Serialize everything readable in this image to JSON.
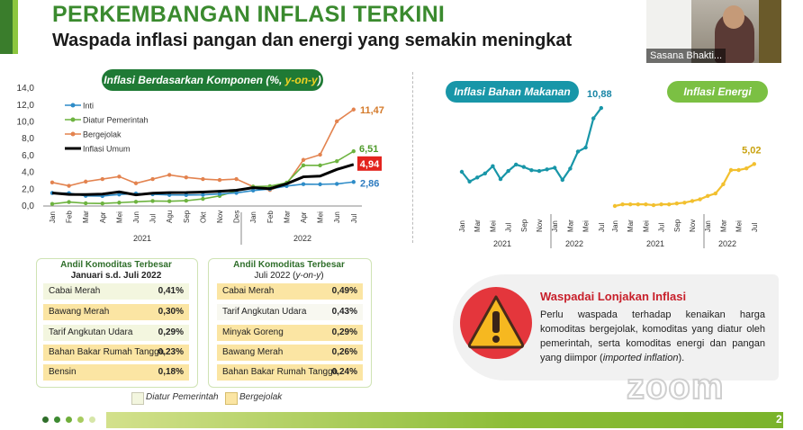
{
  "header": {
    "title": "PERKEMBANGAN INFLASI TERKINI",
    "subtitle": "Waspada inflasi pangan dan energi yang semakin meningkat"
  },
  "video": {
    "participant_name": "Sasana Bhakti..."
  },
  "main_chart": {
    "pill_main": "Inflasi Berdasarkan Komponen (%, ",
    "pill_highlight": "y-on-y",
    "pill_end": ")",
    "end_labels": [
      "11,47",
      "6,51",
      "4,94",
      "2,86"
    ]
  },
  "food_chart": {
    "pill": "Inflasi Bahan Makanan",
    "end_label": "10,88"
  },
  "energy_chart": {
    "pill": "Inflasi Energi",
    "end_label": "5,02"
  },
  "chart_data": [
    {
      "type": "line",
      "title": "Inflasi Berdasarkan Komponen (%, y-on-y)",
      "ylim": [
        0,
        14
      ],
      "y_ticks": [
        "0,0",
        "2,0",
        "4,0",
        "6,0",
        "8,0",
        "10,0",
        "12,0",
        "14,0"
      ],
      "x": [
        "Jan",
        "Feb",
        "Mar",
        "Apr",
        "Mei",
        "Jun",
        "Jul",
        "Agu",
        "Sep",
        "Okt",
        "Nov",
        "Des",
        "Jan",
        "Feb",
        "Mar",
        "Apr",
        "Mei",
        "Jun",
        "Jul"
      ],
      "year_labels": [
        "2021",
        "2022"
      ],
      "legend": [
        "Inti",
        "Diatur Pemerintah",
        "Bergejolak",
        "Inflasi Umum"
      ],
      "series": [
        {
          "name": "Inti",
          "color": "#2e8cc8",
          "values": [
            1.55,
            1.53,
            1.21,
            1.18,
            1.37,
            1.49,
            1.4,
            1.31,
            1.3,
            1.33,
            1.44,
            1.56,
            1.84,
            2.03,
            2.37,
            2.6,
            2.58,
            2.63,
            2.86
          ]
        },
        {
          "name": "Diatur Pemerintah",
          "color": "#6db33f",
          "values": [
            0.25,
            0.47,
            0.33,
            0.3,
            0.4,
            0.5,
            0.6,
            0.57,
            0.63,
            0.85,
            1.2,
            1.79,
            2.31,
            2.36,
            2.77,
            4.83,
            4.83,
            5.33,
            6.51
          ]
        },
        {
          "name": "Bergejolak",
          "color": "#e3834f",
          "values": [
            2.8,
            2.4,
            2.9,
            3.2,
            3.5,
            2.7,
            3.2,
            3.7,
            3.4,
            3.2,
            3.1,
            3.2,
            2.3,
            1.9,
            2.6,
            5.48,
            6.1,
            10.07,
            11.47
          ]
        },
        {
          "name": "Inflasi Umum",
          "color": "#000000",
          "values": [
            1.55,
            1.38,
            1.37,
            1.42,
            1.68,
            1.33,
            1.52,
            1.59,
            1.6,
            1.66,
            1.75,
            1.87,
            2.18,
            2.06,
            2.64,
            3.47,
            3.55,
            4.35,
            4.94
          ]
        }
      ]
    },
    {
      "type": "line",
      "title": "Inflasi Bahan Makanan",
      "x": [
        "Jan",
        "Feb",
        "Mar",
        "Apr",
        "Mei",
        "Jun",
        "Jul",
        "Agu",
        "Sep",
        "Okt",
        "Nov",
        "Des",
        "Jan",
        "Feb",
        "Mar",
        "Apr",
        "Mei",
        "Jun",
        "Jul"
      ],
      "x_ticks": [
        "Jan",
        "Mar",
        "Mei",
        "Jul",
        "Sep",
        "Nov",
        "Jan",
        "Mar",
        "Mei",
        "Jul"
      ],
      "year_labels": [
        "2021",
        "2022"
      ],
      "series": [
        {
          "name": "Inflasi Bahan Makanan",
          "color": "#1896a8",
          "values": [
            3.0,
            1.8,
            2.3,
            2.8,
            3.7,
            2.1,
            3.1,
            3.9,
            3.6,
            3.2,
            3.1,
            3.3,
            3.5,
            2.0,
            3.4,
            5.5,
            6.0,
            9.6,
            10.88
          ]
        }
      ]
    },
    {
      "type": "line",
      "title": "Inflasi Energi",
      "x": [
        "Jan",
        "Feb",
        "Mar",
        "Apr",
        "Mei",
        "Jun",
        "Jul",
        "Agu",
        "Sep",
        "Okt",
        "Nov",
        "Des",
        "Jan",
        "Feb",
        "Mar",
        "Apr",
        "Mei",
        "Jun",
        "Jul"
      ],
      "x_ticks": [
        "Jan",
        "Mar",
        "Mei",
        "Jul",
        "Sep",
        "Nov",
        "Jan",
        "Mar",
        "Mei",
        "Jul"
      ],
      "year_labels": [
        "2021",
        "2022"
      ],
      "series": [
        {
          "name": "Inflasi Energi",
          "color": "#f2c02f",
          "values": [
            0.0,
            0.2,
            0.2,
            0.2,
            0.2,
            0.1,
            0.2,
            0.2,
            0.3,
            0.4,
            0.6,
            0.8,
            1.2,
            1.5,
            2.6,
            4.3,
            4.3,
            4.5,
            5.02
          ]
        }
      ]
    }
  ],
  "table_left": {
    "title": "Andil Komoditas Terbesar",
    "subtitle": "Januari s.d. Juli 2022",
    "rows": [
      {
        "name": "Cabai Merah",
        "value": "0,41%"
      },
      {
        "name": "Bawang Merah",
        "value": "0,30%"
      },
      {
        "name": "Tarif Angkutan Udara",
        "value": "0,29%"
      },
      {
        "name": "Bahan Bakar Rumah Tangga",
        "value": "0,23%"
      },
      {
        "name": "Bensin",
        "value": "0,18%"
      }
    ]
  },
  "table_right": {
    "title": "Andil Komoditas Terbesar",
    "subtitle_a": "Juli 2022 (",
    "subtitle_b": "y-on-y",
    "subtitle_c": ")",
    "rows": [
      {
        "name": "Cabai Merah",
        "value": "0,49%"
      },
      {
        "name": "Tarif Angkutan Udara",
        "value": "0,43%"
      },
      {
        "name": "Minyak Goreng",
        "value": "0,29%"
      },
      {
        "name": "Bawang Merah",
        "value": "0,26%"
      },
      {
        "name": "Bahan Bakar Rumah Tangga",
        "value": "0,24%"
      }
    ]
  },
  "legend_bottom": {
    "diatur": "Diatur Pemerintah",
    "bergejolak": "Bergejolak"
  },
  "warning": {
    "title": "Waspadai Lonjakan Inflasi",
    "body": "Perlu waspada terhadap kenaikan harga komoditas bergejolak, komoditas yang diatur oleh pemerintah, serta komoditas energi dan pangan yang diimpor (",
    "body_italic": "imported inflation",
    "body_end": ")."
  },
  "watermark": "zoom",
  "page_number": "2"
}
